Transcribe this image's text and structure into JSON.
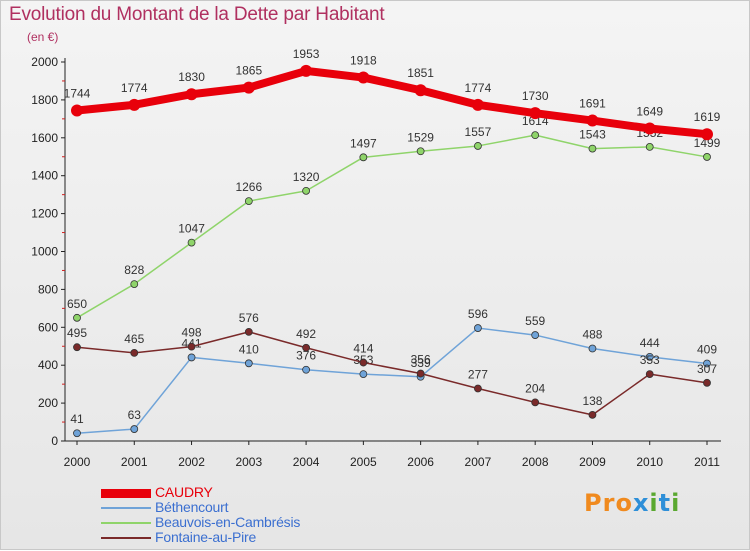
{
  "header": {
    "title": "Evolution du Montant de la Dette par Habitant",
    "unit": "(en €)"
  },
  "brand": {
    "logo_text": "Proxiti",
    "colors": [
      "#f08a1e",
      "#f08a1e",
      "#f08a1e",
      "#2e8fd8",
      "#5aa830",
      "#2e8fd8",
      "#5aa830"
    ]
  },
  "chart_data": {
    "type": "line",
    "title": "Evolution du Montant de la Dette par Habitant",
    "subtitle": "(en €)",
    "xlabel": "",
    "ylabel": "",
    "categories": [
      "2000",
      "2001",
      "2002",
      "2003",
      "2004",
      "2005",
      "2006",
      "2007",
      "2008",
      "2009",
      "2010",
      "2011"
    ],
    "ylim": [
      0,
      2000
    ],
    "yticks": [
      "0",
      "200",
      "400",
      "600",
      "800",
      "1000",
      "1200",
      "1400",
      "1600",
      "1800",
      "2000"
    ],
    "grid": false,
    "legend_position": "bottom-left",
    "series": [
      {
        "name": "CAUDRY",
        "color": "#e8000b",
        "text_color": "#e8000b",
        "emphasis": "bold",
        "values": [
          1744,
          1774,
          1830,
          1865,
          1953,
          1918,
          1851,
          1774,
          1730,
          1691,
          1649,
          1619
        ]
      },
      {
        "name": "Béthencourt",
        "color": "#6fa3d8",
        "text_color": "#3b6fd0",
        "emphasis": "normal",
        "values": [
          41,
          63,
          441,
          410,
          376,
          353,
          339,
          596,
          559,
          488,
          444,
          409
        ]
      },
      {
        "name": "Beauvois-en-Cambrésis",
        "color": "#8fd46a",
        "text_color": "#3b6fd0",
        "emphasis": "normal",
        "values": [
          650,
          828,
          1047,
          1266,
          1320,
          1497,
          1529,
          1557,
          1614,
          1543,
          1552,
          1499
        ]
      },
      {
        "name": "Fontaine-au-Pire",
        "color": "#7a2a2a",
        "text_color": "#3b6fd0",
        "emphasis": "normal",
        "values": [
          495,
          465,
          498,
          576,
          492,
          414,
          356,
          277,
          204,
          138,
          353,
          307
        ]
      }
    ]
  }
}
